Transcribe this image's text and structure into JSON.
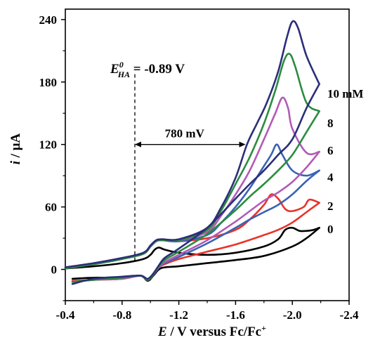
{
  "chart_data": {
    "type": "line",
    "x_axis": {
      "label_italic": "E",
      "label_rest": " / V versus Fc/Fc",
      "label_sup": "+",
      "range": [
        -0.4,
        -2.4
      ],
      "ticks": [
        -0.4,
        -0.8,
        -1.2,
        -1.6,
        -2.0,
        -2.4
      ],
      "tick_labels": [
        "-0.4",
        "-0.8",
        "-1.2",
        "-1.6",
        "-2.0",
        "-2.4"
      ]
    },
    "y_axis": {
      "label_italic": "i",
      "label_rest": " / μA",
      "range": [
        -30,
        250
      ],
      "ticks": [
        0,
        60,
        120,
        180,
        240
      ],
      "tick_labels": [
        "0",
        "60",
        "120",
        "180",
        "240"
      ]
    },
    "series": [
      {
        "name": "0",
        "color": "#000000",
        "forward": [
          [
            -0.4,
            1
          ],
          [
            -0.6,
            3
          ],
          [
            -0.8,
            6
          ],
          [
            -0.95,
            10
          ],
          [
            -1.0,
            14
          ],
          [
            -1.03,
            19
          ],
          [
            -1.06,
            21
          ],
          [
            -1.1,
            19
          ],
          [
            -1.2,
            16
          ],
          [
            -1.4,
            14
          ],
          [
            -1.6,
            16
          ],
          [
            -1.8,
            22
          ],
          [
            -1.9,
            29
          ],
          [
            -1.95,
            38
          ],
          [
            -2.0,
            40
          ],
          [
            -2.05,
            37
          ],
          [
            -2.1,
            37
          ],
          [
            -2.15,
            38
          ],
          [
            -2.19,
            40
          ]
        ],
        "reverse": [
          [
            -2.19,
            40
          ],
          [
            -2.1,
            30
          ],
          [
            -2.0,
            22
          ],
          [
            -1.8,
            13
          ],
          [
            -1.6,
            9
          ],
          [
            -1.4,
            6
          ],
          [
            -1.2,
            3
          ],
          [
            -1.1,
            2
          ],
          [
            -1.06,
            0
          ],
          [
            -1.02,
            -6
          ],
          [
            -0.98,
            -11
          ],
          [
            -0.93,
            -6
          ],
          [
            -0.8,
            -8
          ],
          [
            -0.6,
            -8
          ],
          [
            -0.45,
            -9
          ]
        ]
      },
      {
        "name": "2",
        "color": "#e8342a",
        "forward": [
          [
            -0.4,
            1
          ],
          [
            -0.6,
            5
          ],
          [
            -0.8,
            10
          ],
          [
            -0.95,
            15
          ],
          [
            -1.0,
            22
          ],
          [
            -1.04,
            27
          ],
          [
            -1.08,
            28
          ],
          [
            -1.2,
            27
          ],
          [
            -1.4,
            30
          ],
          [
            -1.6,
            38
          ],
          [
            -1.7,
            48
          ],
          [
            -1.8,
            62
          ],
          [
            -1.85,
            72
          ],
          [
            -1.9,
            68
          ],
          [
            -1.95,
            58
          ],
          [
            -2.0,
            56
          ],
          [
            -2.08,
            60
          ],
          [
            -2.12,
            67
          ],
          [
            -2.19,
            64
          ]
        ],
        "reverse": [
          [
            -2.19,
            64
          ],
          [
            -2.1,
            55
          ],
          [
            -2.0,
            45
          ],
          [
            -1.9,
            38
          ],
          [
            -1.8,
            33
          ],
          [
            -1.6,
            24
          ],
          [
            -1.4,
            17
          ],
          [
            -1.2,
            10
          ],
          [
            -1.1,
            5
          ],
          [
            -1.06,
            2
          ],
          [
            -1.02,
            -5
          ],
          [
            -0.98,
            -10
          ],
          [
            -0.93,
            -6
          ],
          [
            -0.8,
            -9
          ],
          [
            -0.6,
            -10
          ],
          [
            -0.45,
            -11
          ]
        ]
      },
      {
        "name": "4",
        "color": "#3a62b5",
        "forward": [
          [
            -0.4,
            1
          ],
          [
            -0.6,
            5
          ],
          [
            -0.8,
            10
          ],
          [
            -0.95,
            15
          ],
          [
            -1.0,
            22
          ],
          [
            -1.04,
            27
          ],
          [
            -1.08,
            28
          ],
          [
            -1.2,
            27
          ],
          [
            -1.4,
            33
          ],
          [
            -1.5,
            45
          ],
          [
            -1.6,
            60
          ],
          [
            -1.7,
            78
          ],
          [
            -1.78,
            95
          ],
          [
            -1.85,
            110
          ],
          [
            -1.89,
            120
          ],
          [
            -1.93,
            110
          ],
          [
            -2.0,
            95
          ],
          [
            -2.1,
            90
          ],
          [
            -2.19,
            95
          ]
        ],
        "reverse": [
          [
            -2.19,
            95
          ],
          [
            -2.1,
            85
          ],
          [
            -2.0,
            72
          ],
          [
            -1.9,
            62
          ],
          [
            -1.8,
            55
          ],
          [
            -1.7,
            48
          ],
          [
            -1.6,
            40
          ],
          [
            -1.4,
            25
          ],
          [
            -1.2,
            12
          ],
          [
            -1.1,
            6
          ],
          [
            -1.06,
            2
          ],
          [
            -1.02,
            -5
          ],
          [
            -0.98,
            -10
          ],
          [
            -0.93,
            -6
          ],
          [
            -0.8,
            -8
          ],
          [
            -0.6,
            -10
          ],
          [
            -0.45,
            -12
          ]
        ]
      },
      {
        "name": "6",
        "color": "#b25ab8",
        "forward": [
          [
            -0.4,
            1
          ],
          [
            -0.6,
            5
          ],
          [
            -0.8,
            10
          ],
          [
            -0.95,
            15
          ],
          [
            -1.0,
            22
          ],
          [
            -1.04,
            27
          ],
          [
            -1.08,
            28
          ],
          [
            -1.2,
            28
          ],
          [
            -1.4,
            36
          ],
          [
            -1.5,
            52
          ],
          [
            -1.6,
            72
          ],
          [
            -1.7,
            95
          ],
          [
            -1.8,
            125
          ],
          [
            -1.88,
            150
          ],
          [
            -1.93,
            165
          ],
          [
            -1.97,
            155
          ],
          [
            -2.0,
            135
          ],
          [
            -2.1,
            112
          ],
          [
            -2.19,
            113
          ]
        ],
        "reverse": [
          [
            -2.19,
            113
          ],
          [
            -2.1,
            98
          ],
          [
            -2.0,
            84
          ],
          [
            -1.9,
            74
          ],
          [
            -1.8,
            66
          ],
          [
            -1.7,
            56
          ],
          [
            -1.6,
            46
          ],
          [
            -1.4,
            28
          ],
          [
            -1.2,
            14
          ],
          [
            -1.1,
            7
          ],
          [
            -1.06,
            2
          ],
          [
            -1.02,
            -5
          ],
          [
            -0.98,
            -10
          ],
          [
            -0.93,
            -6
          ],
          [
            -0.8,
            -9
          ],
          [
            -0.6,
            -10
          ],
          [
            -0.45,
            -12
          ]
        ]
      },
      {
        "name": "8",
        "color": "#2a8c3e",
        "forward": [
          [
            -0.4,
            1
          ],
          [
            -0.6,
            5
          ],
          [
            -0.8,
            10
          ],
          [
            -0.95,
            15
          ],
          [
            -1.0,
            22
          ],
          [
            -1.04,
            27
          ],
          [
            -1.08,
            28
          ],
          [
            -1.2,
            28
          ],
          [
            -1.4,
            38
          ],
          [
            -1.5,
            57
          ],
          [
            -1.6,
            82
          ],
          [
            -1.7,
            108
          ],
          [
            -1.8,
            140
          ],
          [
            -1.88,
            172
          ],
          [
            -1.94,
            200
          ],
          [
            -1.98,
            207
          ],
          [
            -2.02,
            195
          ],
          [
            -2.1,
            160
          ],
          [
            -2.19,
            152
          ]
        ],
        "reverse": [
          [
            -2.19,
            152
          ],
          [
            -2.1,
            132
          ],
          [
            -2.0,
            110
          ],
          [
            -1.9,
            95
          ],
          [
            -1.8,
            82
          ],
          [
            -1.7,
            70
          ],
          [
            -1.6,
            57
          ],
          [
            -1.4,
            34
          ],
          [
            -1.2,
            17
          ],
          [
            -1.1,
            9
          ],
          [
            -1.06,
            3
          ],
          [
            -1.02,
            -5
          ],
          [
            -0.98,
            -10
          ],
          [
            -0.93,
            -6
          ],
          [
            -0.8,
            -8
          ],
          [
            -0.6,
            -10
          ],
          [
            -0.45,
            -12
          ]
        ]
      },
      {
        "name": "10 mM",
        "color": "#2b2e78",
        "forward": [
          [
            -0.4,
            2
          ],
          [
            -0.6,
            6
          ],
          [
            -0.8,
            11
          ],
          [
            -0.95,
            16
          ],
          [
            -1.0,
            23
          ],
          [
            -1.04,
            28
          ],
          [
            -1.08,
            29
          ],
          [
            -1.2,
            29
          ],
          [
            -1.4,
            40
          ],
          [
            -1.5,
            60
          ],
          [
            -1.6,
            88
          ],
          [
            -1.68,
            120
          ],
          [
            -1.75,
            140
          ],
          [
            -1.82,
            160
          ],
          [
            -1.9,
            190
          ],
          [
            -1.96,
            222
          ],
          [
            -2.0,
            238
          ],
          [
            -2.04,
            232
          ],
          [
            -2.1,
            205
          ],
          [
            -2.19,
            178
          ]
        ],
        "reverse": [
          [
            -2.19,
            178
          ],
          [
            -2.1,
            155
          ],
          [
            -2.0,
            125
          ],
          [
            -1.9,
            110
          ],
          [
            -1.8,
            95
          ],
          [
            -1.7,
            82
          ],
          [
            -1.6,
            68
          ],
          [
            -1.4,
            40
          ],
          [
            -1.2,
            20
          ],
          [
            -1.1,
            11
          ],
          [
            -1.06,
            4
          ],
          [
            -1.02,
            -4
          ],
          [
            -0.98,
            -9
          ],
          [
            -0.93,
            -6
          ],
          [
            -0.8,
            -7
          ],
          [
            -0.6,
            -9
          ],
          [
            -0.45,
            -14
          ]
        ]
      }
    ],
    "annotations": {
      "e0_symbol": "E",
      "e0_sup": "0",
      "e0_sub": "HA",
      "e0_value": " = -0.89 V",
      "e0_x": -0.89,
      "arrow_label": "780 mV",
      "arrow_from": -0.89,
      "arrow_to": -1.67,
      "arrow_y": 120
    }
  }
}
